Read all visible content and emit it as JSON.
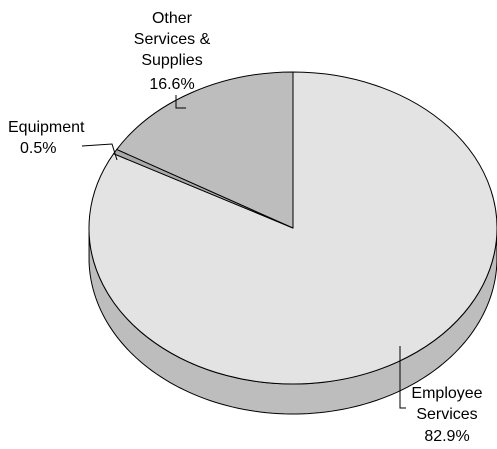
{
  "chart_data": {
    "type": "pie",
    "slices": [
      {
        "label_lines": [
          "Employee",
          "Services"
        ],
        "value": 82.9,
        "value_label": "82.9%",
        "color": "#e3e3e3",
        "side_color": "#bdbdbd"
      },
      {
        "label_lines": [
          "Equipment"
        ],
        "value": 0.5,
        "value_label": "0.5%",
        "color": "#a9a9a9",
        "side_color": "#8c8c8c"
      },
      {
        "label_lines": [
          "Other",
          "Services &",
          "Supplies"
        ],
        "value": 16.6,
        "value_label": "16.6%",
        "color": "#bdbdbd",
        "side_color": "#9a9a9a"
      }
    ],
    "style": "3d-pie",
    "legend": "none"
  }
}
